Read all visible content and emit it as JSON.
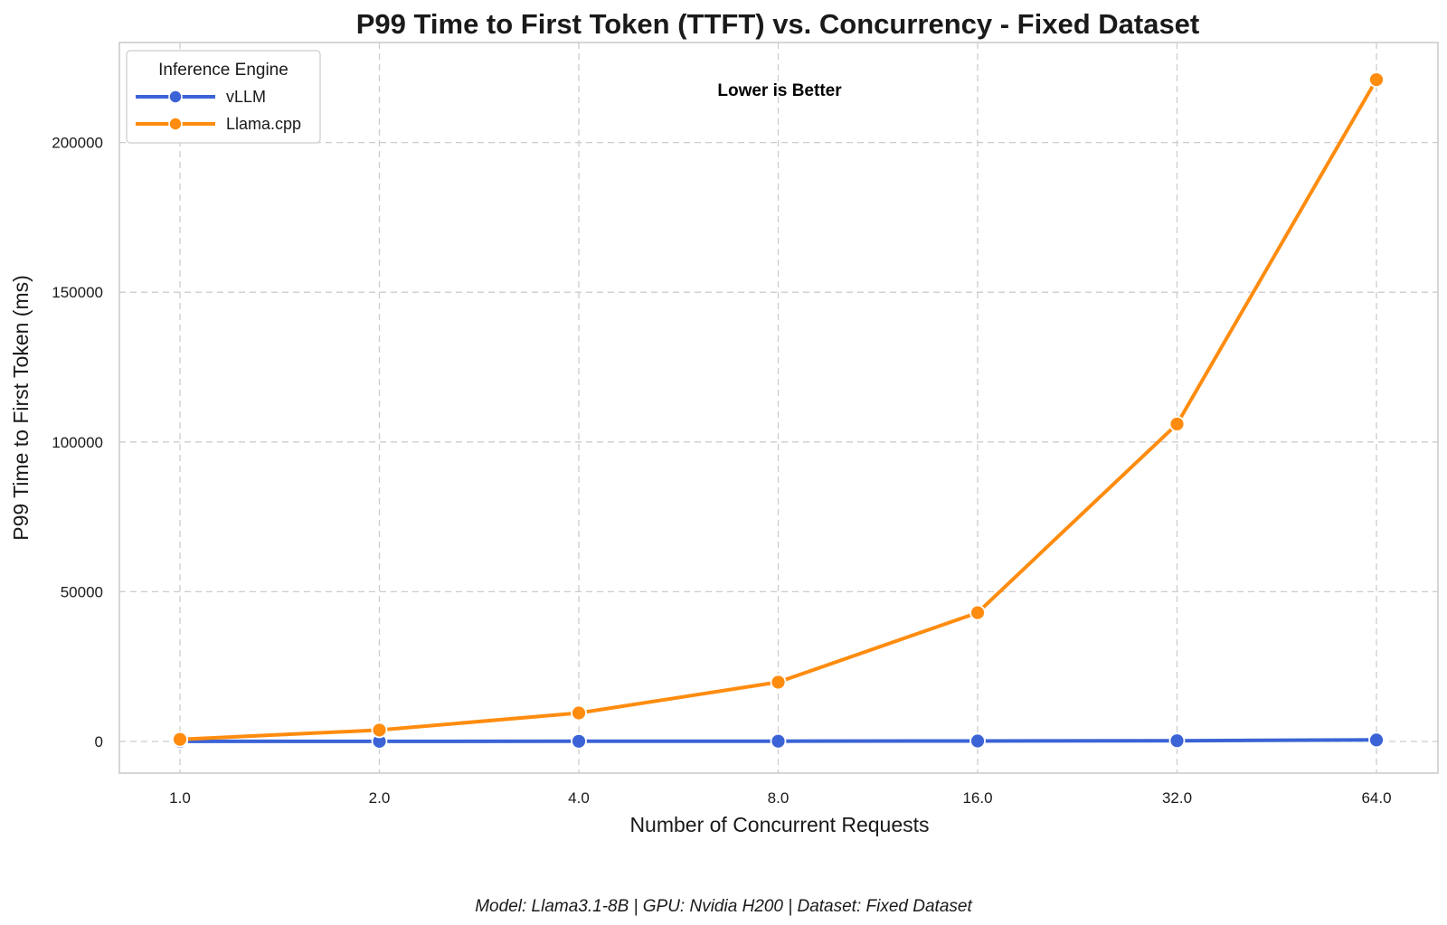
{
  "chart_data": {
    "type": "line",
    "title": "P99 Time to First Token (TTFT) vs. Concurrency - Fixed Dataset",
    "xlabel": "Number of Concurrent Requests",
    "ylabel": "P99 Time to First Token (ms)",
    "x": [
      1,
      2,
      4,
      8,
      16,
      32,
      64
    ],
    "x_tick_labels": [
      "1.0",
      "2.0",
      "4.0",
      "8.0",
      "16.0",
      "32.0",
      "64.0"
    ],
    "x_scale": "log2",
    "y_ticks": [
      0,
      50000,
      100000,
      150000,
      200000
    ],
    "y_tick_labels": [
      "0",
      "50000",
      "100000",
      "150000",
      "200000"
    ],
    "ylim": [
      -11000,
      233000
    ],
    "grid": true,
    "legend": {
      "title": "Inference Engine",
      "position": "top-left"
    },
    "annotation": "Lower is Better",
    "footer": "Model: Llama3.1-8B | GPU: Nvidia H200 | Dataset: Fixed Dataset",
    "series": [
      {
        "name": "vLLM",
        "color": "#3b63d6",
        "values": [
          20,
          40,
          60,
          90,
          150,
          250,
          500
        ]
      },
      {
        "name": "Llama.cpp",
        "color": "#ff8c0f",
        "values": [
          700,
          3800,
          9500,
          19800,
          43000,
          106000,
          221000
        ]
      }
    ]
  }
}
